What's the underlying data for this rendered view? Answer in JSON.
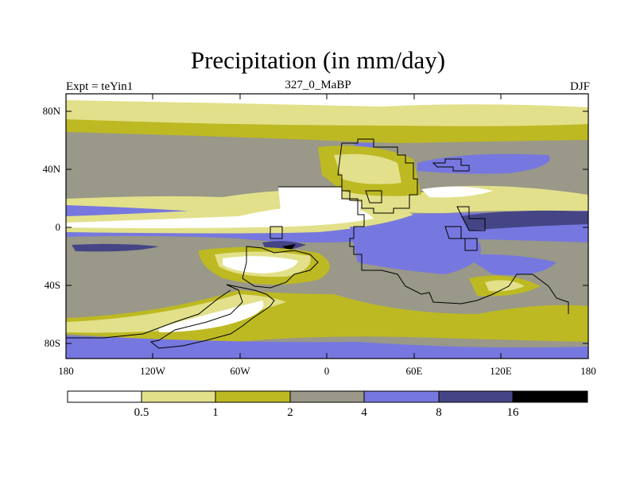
{
  "map": {
    "title": "Precipitation (in mm/day)",
    "subtitle_left": "Expt = teYin1",
    "subtitle_center": "327_0_MaBP",
    "subtitle_right": "DJF",
    "lat_labels": [
      "80N",
      "40N",
      "0",
      "40S",
      "80S"
    ],
    "lon_labels": [
      "180",
      "120W",
      "60W",
      "0",
      "60E",
      "120E",
      "180"
    ]
  },
  "legend": {
    "labels": [
      "0.5",
      "1",
      "2",
      "4",
      "8",
      "16"
    ],
    "colors": [
      "#ffffff",
      "#e2e08a",
      "#bdb922",
      "#999889",
      "#7777e0",
      "#454586",
      "#000000"
    ]
  }
}
